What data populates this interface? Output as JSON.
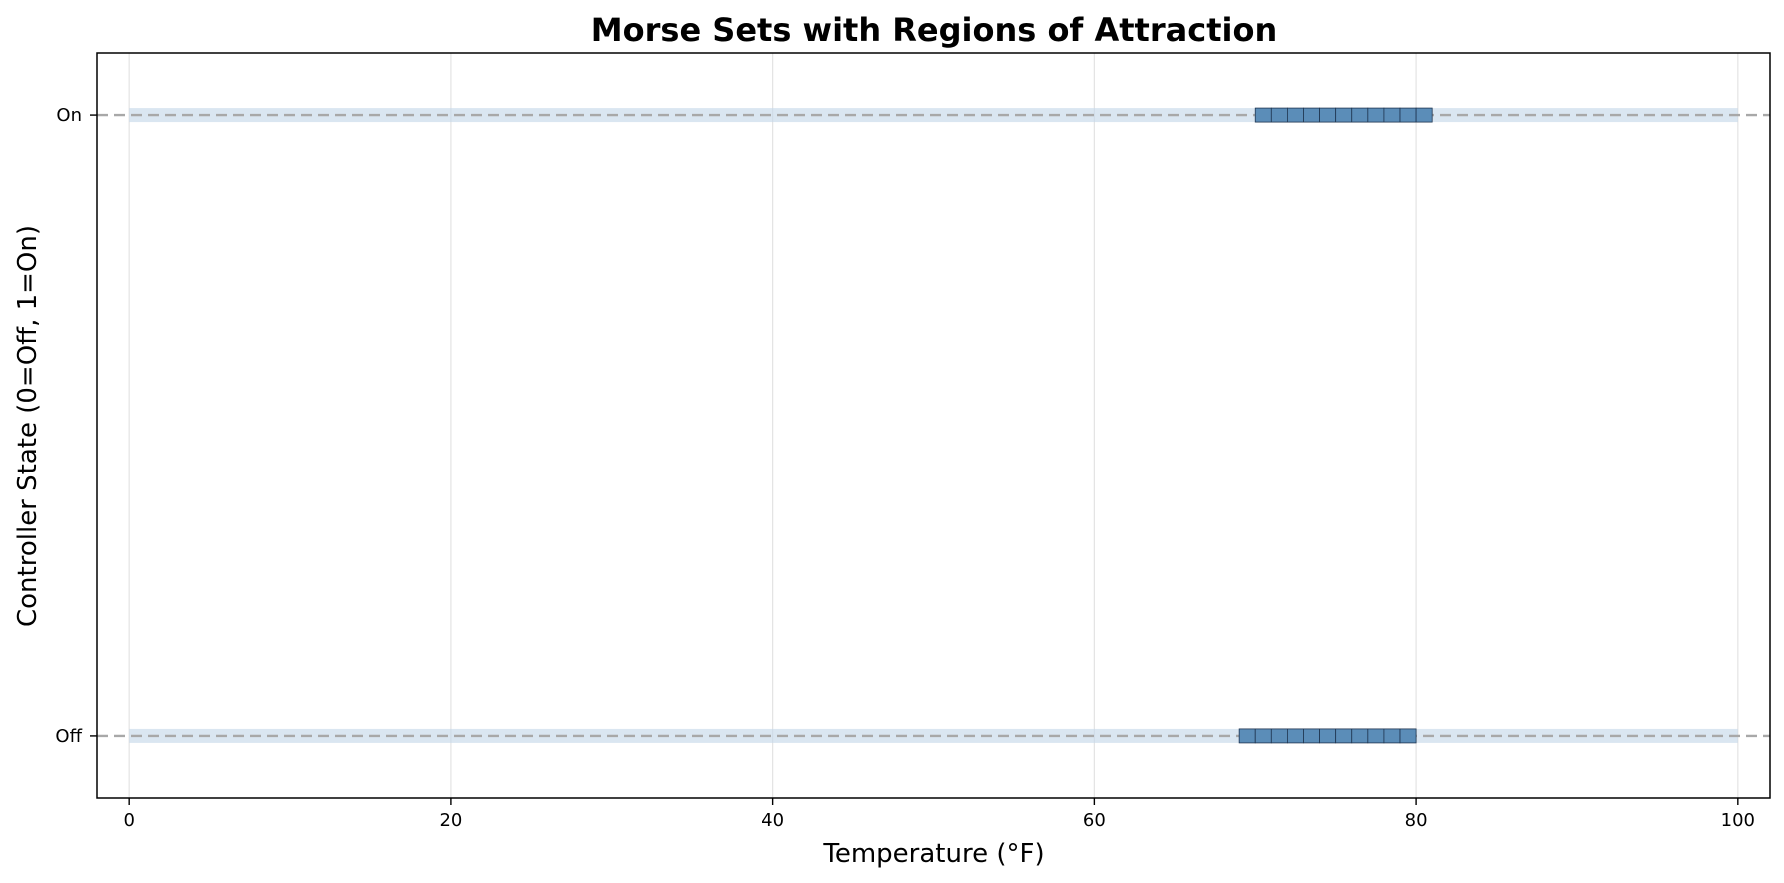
{
  "chart_data": {
    "type": "scatter",
    "title": "Morse Sets with Regions of Attraction",
    "xlabel": "Temperature (°F)",
    "ylabel": "Controller State (0=Off, 1=On)",
    "xlim": [
      -2,
      102
    ],
    "ylim": [
      -0.1,
      1.1
    ],
    "x_ticks": [
      0,
      20,
      40,
      60,
      80,
      100
    ],
    "y_ticks": [
      {
        "value": 0,
        "label": "Off"
      },
      {
        "value": 1,
        "label": "On"
      }
    ],
    "grid": "x-axis only",
    "state_lines": [
      {
        "state": 1,
        "x_range": [
          0,
          100
        ]
      },
      {
        "state": 0,
        "x_range": [
          0,
          100
        ]
      }
    ],
    "regions_of_attraction": [
      {
        "state": 1,
        "x_range": [
          0,
          100
        ]
      },
      {
        "state": 0,
        "x_range": [
          0,
          100
        ]
      }
    ],
    "morse_sets": [
      {
        "state": 1,
        "x_range": [
          70,
          81
        ],
        "cell_width": 1
      },
      {
        "state": 0,
        "x_range": [
          69,
          80
        ],
        "cell_width": 1
      }
    ],
    "colors": {
      "morse_cell": "#5b8db8",
      "morse_edge": "#1f3550",
      "region_band": "#c6d9ea",
      "state_line": "#a8a8a8",
      "grid": "#e3e3e3"
    }
  }
}
